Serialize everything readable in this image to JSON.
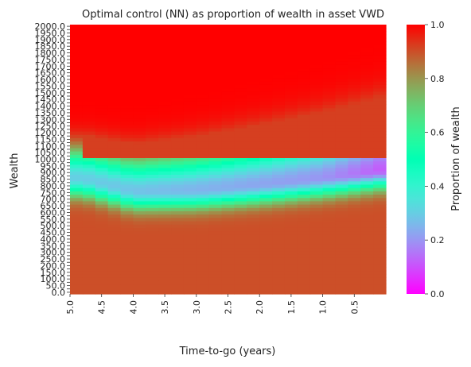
{
  "chart_data": {
    "type": "heatmap",
    "title": "Optimal control (NN) as proportion of wealth in asset VWD",
    "xlabel": "Time-to-go (years)",
    "ylabel": "Wealth",
    "colorbar_label": "Proportion of wealth",
    "x_tick_labels": [
      "5.0",
      "4.5",
      "4.0",
      "3.5",
      "3.0",
      "2.5",
      "2.0",
      "1.5",
      "1.0",
      "0.5"
    ],
    "colorbar_ticks": [
      "0.0",
      "0.2",
      "0.4",
      "0.6",
      "0.8",
      "1.0"
    ],
    "y_range": [
      0,
      2000
    ],
    "y_step": 25,
    "x_range": [
      5.0,
      0.0
    ],
    "n_time_columns": 25,
    "colormap": "rainbow",
    "value_range": [
      0,
      1
    ],
    "description_points": {
      "low_wealth_proportion": 0.9,
      "high_wealth_proportion": 1.0,
      "minimum_band_center_wealth": [
        {
          "t": 4.8,
          "w": 860
        },
        {
          "t": 4.0,
          "w": 760
        },
        {
          "t": 3.0,
          "w": 770
        },
        {
          "t": 2.0,
          "w": 810
        },
        {
          "t": 1.0,
          "w": 860
        },
        {
          "t": 0.1,
          "w": 920
        }
      ],
      "minimum_band_value": [
        {
          "t": 4.8,
          "w": 0.3
        },
        {
          "t": 3.0,
          "w": 0.25
        },
        {
          "t": 1.0,
          "w": 0.2
        },
        {
          "t": 0.1,
          "w": 0.12
        }
      ],
      "jump_wealth_at_end": 1000
    }
  }
}
